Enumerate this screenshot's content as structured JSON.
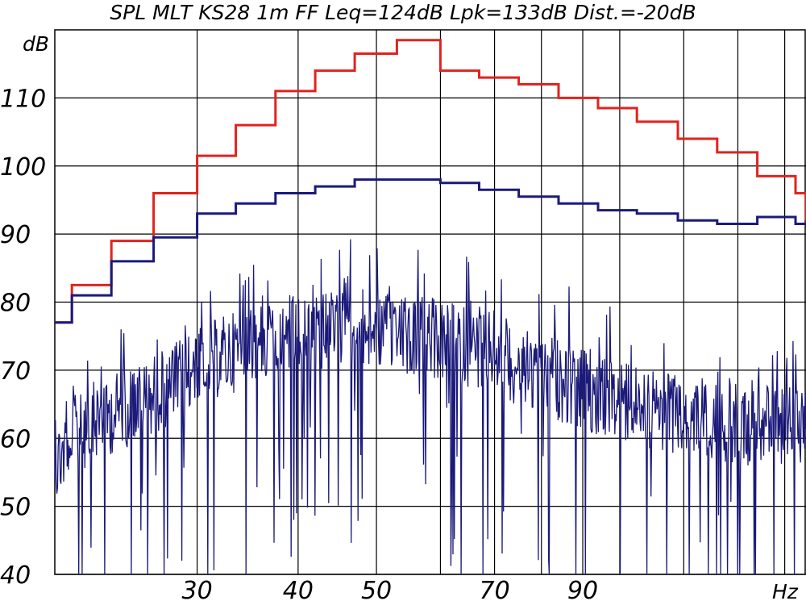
{
  "chart_data": {
    "type": "line",
    "title": "SPL MLT KS28 1m FF Leq=124dB Lpk=133dB Dist.=-20dB",
    "ylabel": "dB",
    "xlabel": "Hz",
    "x_scale": "log",
    "xlim": [
      20,
      170
    ],
    "ylim": [
      40,
      120
    ],
    "yticks": [
      40,
      50,
      60,
      70,
      80,
      90,
      100,
      110
    ],
    "xtick_labels": [
      30,
      40,
      50,
      70,
      90
    ],
    "grid": true,
    "colors": {
      "red": "#e0231e",
      "blue": "#1b1a7a"
    },
    "series": [
      {
        "color": "red",
        "kind": "step",
        "edges": [
          20,
          21,
          23.5,
          26.5,
          30,
          33.5,
          37.5,
          42,
          47,
          53,
          60,
          67,
          75,
          84,
          94,
          105,
          118,
          132,
          148,
          165,
          170
        ],
        "values": [
          77,
          82.5,
          89,
          96,
          101.5,
          106,
          111,
          114,
          116.5,
          118.5,
          114,
          113,
          112,
          110,
          108.5,
          106.5,
          104,
          102,
          98.5,
          96,
          92
        ]
      },
      {
        "color": "blue",
        "kind": "step",
        "edges": [
          20,
          21,
          23.5,
          26.5,
          30,
          33.5,
          37.5,
          42,
          47,
          53,
          60,
          67,
          75,
          84,
          94,
          105,
          118,
          132,
          148,
          165,
          170
        ],
        "values": [
          77,
          81,
          86,
          89.5,
          93,
          94.5,
          96,
          97,
          98,
          98,
          97.5,
          96.5,
          95.5,
          94.5,
          93.5,
          93,
          92,
          91.5,
          92.5,
          91.5,
          91
        ]
      },
      {
        "color": "blue",
        "kind": "noise",
        "description_free": true,
        "x": [
          20,
          21,
          22,
          24,
          26,
          28,
          30,
          32,
          34,
          36,
          38,
          40,
          42,
          45,
          48,
          50,
          52,
          55,
          58,
          60,
          63,
          66,
          70,
          74,
          78,
          82,
          86,
          90,
          95,
          100,
          105,
          110,
          115,
          120,
          130,
          140,
          150,
          160,
          170
        ],
        "envelope": [
          62,
          66,
          68,
          70,
          72,
          74,
          76,
          78,
          79,
          80,
          81,
          81,
          81,
          82,
          82,
          82,
          81,
          81,
          81,
          80,
          80,
          79,
          79,
          77,
          76,
          75,
          74,
          73,
          72,
          71,
          71,
          70,
          70,
          69,
          69,
          68,
          68,
          68,
          68
        ]
      }
    ]
  }
}
